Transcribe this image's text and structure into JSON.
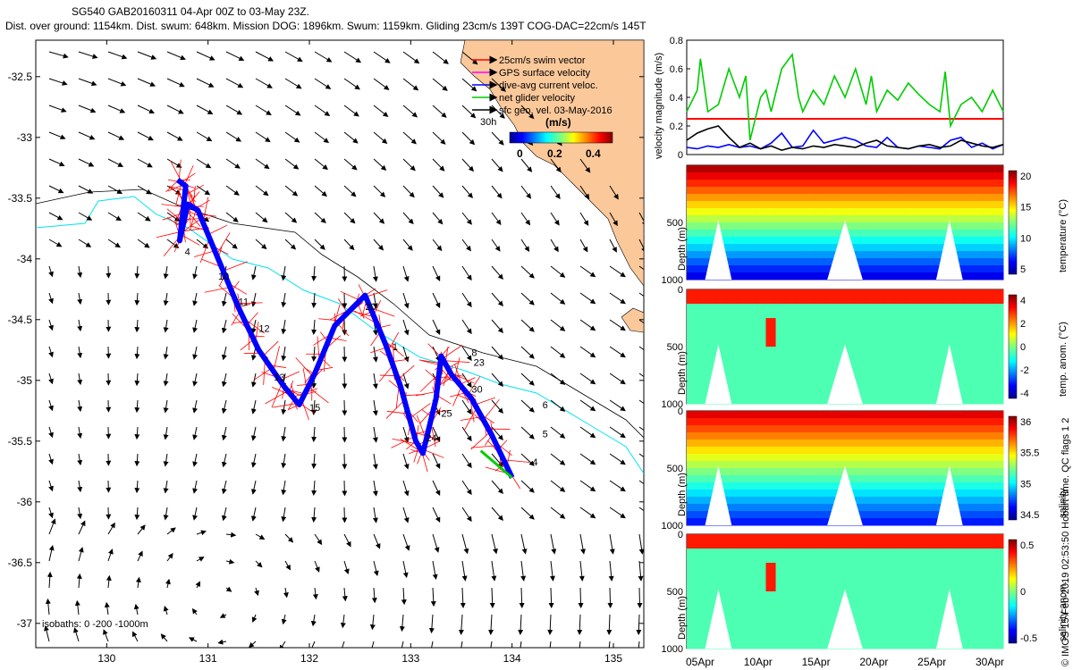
{
  "header": {
    "line1": "SG540 GAB20160311 04-Apr 00Z to 03-May 23Z.",
    "line2": "Dist. over ground: 1154km. Dist. swum: 648km. Mission DOG: 1896km. Swum: 1159km. Gliding 23cm/s 139T COG-DAC=22cm/s 145T"
  },
  "credit": "© IMOS 15-Feb-2019 02:53:50 Hobart time. QC flags 1 2",
  "colors": {
    "land": "#fbc89a",
    "swim": "#ff0000",
    "gps": "#ff00ff",
    "dac": "#0000ff",
    "net": "#00cc00",
    "sfc": "#000000",
    "coast": "#00e5ee",
    "isobath": "#000000"
  },
  "chart_data": [
    {
      "type": "map",
      "xlim": [
        129.3,
        135.3
      ],
      "ylim": [
        -37.2,
        -32.2
      ],
      "xticks": [
        130,
        131,
        132,
        133,
        134,
        135
      ],
      "xtick_labels": [
        "130",
        "131",
        "132",
        "133",
        "134",
        "135"
      ],
      "yticks": [
        -32.5,
        -33,
        -33.5,
        -34,
        -34.5,
        -35,
        -35.5,
        -36,
        -36.5,
        -37
      ],
      "ytick_labels": [
        "-32.5",
        "-33",
        "-33.5",
        "-34",
        "-34.5",
        "-35",
        "-35.5",
        "-36",
        "-36.5",
        "-37"
      ],
      "legend": [
        {
          "label": "25cm/s swim vector",
          "color": "#ff0000"
        },
        {
          "label": "GPS surface velocity",
          "color": "#ff00ff"
        },
        {
          "label": "dive-avg current veloc.",
          "color": "#0000ff"
        },
        {
          "label": "net glider velocity",
          "color": "#00cc00"
        },
        {
          "label": "sfc geo. vel. 03-May-2016",
          "color": "#000000"
        }
      ],
      "legend_prefix": "30h",
      "colorbar": {
        "label": "(m/s)",
        "ticks": [
          "0",
          "0.2",
          "0.4"
        ],
        "range": [
          0,
          0.5
        ]
      },
      "isobath_label": "isobaths: 0 -200 -1000m",
      "track": [
        [
          130.7,
          -33.35
        ],
        [
          130.78,
          -33.4
        ],
        [
          130.72,
          -33.85
        ],
        [
          130.8,
          -33.55
        ],
        [
          130.9,
          -33.6
        ],
        [
          131.1,
          -34.0
        ],
        [
          131.3,
          -34.4
        ],
        [
          131.5,
          -34.75
        ],
        [
          131.75,
          -35.05
        ],
        [
          131.9,
          -35.2
        ],
        [
          132.05,
          -34.95
        ],
        [
          132.25,
          -34.55
        ],
        [
          132.55,
          -34.3
        ],
        [
          132.75,
          -34.7
        ],
        [
          132.9,
          -35.05
        ],
        [
          133.05,
          -35.5
        ],
        [
          133.12,
          -35.6
        ],
        [
          133.25,
          -35.15
        ],
        [
          133.3,
          -34.8
        ],
        [
          133.4,
          -34.95
        ],
        [
          133.6,
          -35.15
        ],
        [
          133.8,
          -35.45
        ],
        [
          134.0,
          -35.8
        ]
      ],
      "day_labels": [
        {
          "t": "4",
          "lon": 130.77,
          "lat": -33.97
        },
        {
          "t": "10",
          "lon": 131.1,
          "lat": -34.17
        },
        {
          "t": "11",
          "lon": 131.3,
          "lat": -34.38
        },
        {
          "t": "12",
          "lon": 131.5,
          "lat": -34.6
        },
        {
          "t": "13",
          "lon": 131.65,
          "lat": -35.0
        },
        {
          "t": "15",
          "lon": 132.0,
          "lat": -35.25
        },
        {
          "t": "20",
          "lon": 132.55,
          "lat": -34.42
        },
        {
          "t": "1",
          "lon": 132.82,
          "lat": -34.75
        },
        {
          "t": "8",
          "lon": 133.6,
          "lat": -34.8
        },
        {
          "t": "23",
          "lon": 133.62,
          "lat": -34.88
        },
        {
          "t": "30",
          "lon": 133.6,
          "lat": -35.1
        },
        {
          "t": "25",
          "lon": 133.3,
          "lat": -35.3
        },
        {
          "t": "24",
          "lon": 133.15,
          "lat": -35.5
        },
        {
          "t": "6",
          "lon": 134.3,
          "lat": -35.23
        },
        {
          "t": "5",
          "lon": 134.3,
          "lat": -35.47
        },
        {
          "t": "4",
          "lon": 134.2,
          "lat": -35.7
        }
      ]
    },
    {
      "type": "line",
      "ylabel": "velocity magnitude (m/s)",
      "ylim": [
        0,
        0.8
      ],
      "yticks": [
        0,
        0.2,
        0.4,
        0.6,
        0.8
      ],
      "xlim": [
        4,
        34
      ],
      "series": [
        {
          "name": "swim",
          "color": "#ff0000",
          "x": [
            4,
            34
          ],
          "values": [
            0.25,
            0.25
          ]
        },
        {
          "name": "net glider velocity",
          "color": "#00cc00",
          "x": [
            4,
            5,
            5.3,
            6,
            7,
            8,
            9,
            9.6,
            10,
            11,
            11.5,
            12,
            13,
            14,
            14.6,
            15,
            16,
            17,
            18,
            19,
            20,
            21,
            21.5,
            22,
            23,
            24,
            25,
            26,
            27,
            28,
            28.5,
            29,
            30,
            31,
            32,
            33,
            34
          ],
          "values": [
            0.3,
            0.45,
            0.67,
            0.3,
            0.35,
            0.6,
            0.4,
            0.55,
            0.1,
            0.4,
            0.45,
            0.3,
            0.6,
            0.7,
            0.4,
            0.3,
            0.45,
            0.35,
            0.55,
            0.4,
            0.6,
            0.35,
            0.55,
            0.3,
            0.45,
            0.38,
            0.5,
            0.42,
            0.35,
            0.3,
            0.58,
            0.2,
            0.35,
            0.4,
            0.3,
            0.45,
            0.3
          ]
        },
        {
          "name": "dive-avg current",
          "color": "#0000ff",
          "x": [
            4,
            5,
            6,
            7,
            8,
            9,
            10,
            11,
            12,
            13,
            14,
            15,
            16,
            17,
            18,
            19,
            20,
            21,
            22,
            23,
            24,
            25,
            26,
            27,
            28,
            29,
            30,
            31,
            32,
            33,
            34
          ],
          "values": [
            0.05,
            0.04,
            0.06,
            0.05,
            0.07,
            0.05,
            0.06,
            0.04,
            0.08,
            0.15,
            0.05,
            0.06,
            0.17,
            0.08,
            0.1,
            0.12,
            0.1,
            0.06,
            0.05,
            0.12,
            0.05,
            0.04,
            0.06,
            0.05,
            0.04,
            0.1,
            0.12,
            0.05,
            0.08,
            0.04,
            0.07
          ]
        },
        {
          "name": "GPS surface velocity",
          "color": "#000000",
          "x": [
            4,
            5,
            6,
            7,
            8,
            9,
            10,
            11,
            12,
            13,
            14,
            15,
            16,
            17,
            18,
            19,
            20,
            21,
            22,
            23,
            24,
            25,
            26,
            27,
            28,
            29,
            30,
            31,
            32,
            33,
            34
          ],
          "values": [
            0.1,
            0.15,
            0.18,
            0.2,
            0.12,
            0.05,
            0.08,
            0.04,
            0.06,
            0.03,
            0.05,
            0.04,
            0.06,
            0.05,
            0.07,
            0.06,
            0.05,
            0.08,
            0.1,
            0.06,
            0.05,
            0.04,
            0.06,
            0.07,
            0.05,
            0.06,
            0.1,
            0.08,
            0.06,
            0.05,
            0.07
          ]
        }
      ]
    },
    {
      "type": "heatmap",
      "name": "temperature",
      "clabel": "temperature (°C)",
      "ylabel": "Depth (m)",
      "crange": [
        3,
        23
      ],
      "cticks": [
        "20",
        "15",
        "10",
        "5"
      ],
      "yticks": [
        "500",
        "1000"
      ],
      "colormap": "jet"
    },
    {
      "type": "heatmap",
      "name": "temp_anomaly",
      "clabel": "temp. anom. (°C)",
      "ylabel": "Depth (m)",
      "crange": [
        -4,
        4
      ],
      "cticks": [
        "4",
        "2",
        "0",
        "-2",
        "-4"
      ],
      "yticks": [
        "0",
        "500",
        "1000"
      ],
      "colormap": "jet"
    },
    {
      "type": "heatmap",
      "name": "salinity",
      "clabel": "salinity",
      "ylabel": "Depth (m)",
      "crange": [
        34.2,
        36.2
      ],
      "cticks": [
        "36",
        "35.5",
        "35",
        "34.5"
      ],
      "yticks": [
        "0",
        "500",
        "1000"
      ],
      "colormap": "jet"
    },
    {
      "type": "heatmap",
      "name": "salinity_anomaly",
      "clabel": "salinity anom.",
      "ylabel": "Depth (m)",
      "crange": [
        -0.5,
        0.5
      ],
      "cticks": [
        "0.5",
        "0",
        "-0.5"
      ],
      "yticks": [
        "0",
        "500",
        "1000"
      ],
      "colormap": "jet",
      "xtick_labels": [
        "05Apr",
        "10Apr",
        "15Apr",
        "20Apr",
        "25Apr",
        "30Apr"
      ]
    }
  ]
}
